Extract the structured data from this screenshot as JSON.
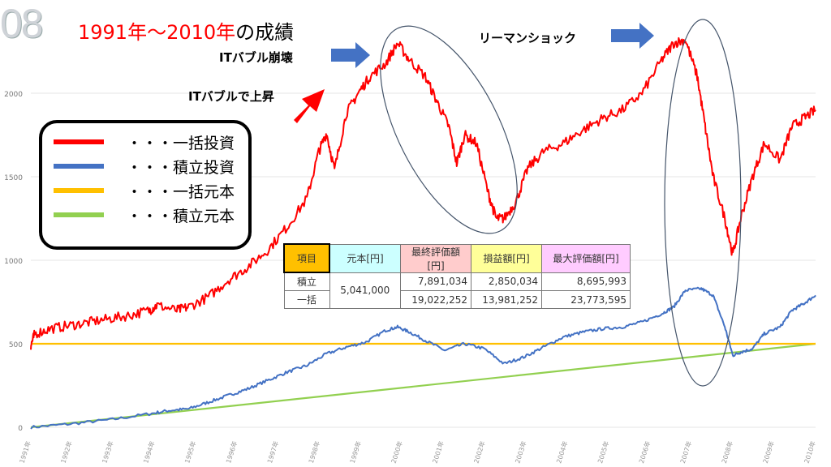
{
  "slide_number": "08",
  "title": {
    "red": "1991年～2010年",
    "black": "の成績"
  },
  "annotations": {
    "it_rise": "ITバブルで上昇",
    "it_crash": "ITバブル崩壊",
    "lehman": "リーマンショック"
  },
  "legend": [
    {
      "label": "・・・一括投資",
      "color": "#ff0000"
    },
    {
      "label": "・・・積立投資",
      "color": "#4472c4"
    },
    {
      "label": "・・・一括元本",
      "color": "#ffc000"
    },
    {
      "label": "・・・積立元本",
      "color": "#92d050"
    }
  ],
  "table": {
    "headers": [
      "項目",
      "元本[円]",
      "最終評価額[円]",
      "損益額[円]",
      "最大評価額[円]"
    ],
    "header_colors": [
      "#ffc000",
      "#ccffff",
      "#ffcccc",
      "#ffff99",
      "#ffccff"
    ],
    "principal": "5,041,000",
    "rows": [
      {
        "label": "積立",
        "final": "7,891,034",
        "profit": "2,850,034",
        "max": "8,695,993"
      },
      {
        "label": "一括",
        "final": "19,022,252",
        "profit": "13,981,252",
        "max": "23,773,595"
      }
    ]
  },
  "chart_data": {
    "type": "line",
    "ylim": [
      0,
      2500
    ],
    "yticks": [
      0,
      500,
      1000,
      1500,
      2000
    ],
    "xlim": [
      1991,
      2010
    ],
    "xticks": [
      "1991年",
      "1992年",
      "1993年",
      "1994年",
      "1995年",
      "1996年",
      "1997年",
      "1998年",
      "1999年",
      "2000年",
      "2001年",
      "2002年",
      "2003年",
      "2004年",
      "2005年",
      "2006年",
      "2007年",
      "2008年",
      "2009年",
      "2010年"
    ],
    "series": [
      {
        "name": "一括投資",
        "color": "#ff0000",
        "x": [
          1991,
          1991.1,
          1991.5,
          1992,
          1992.5,
          1993,
          1993.5,
          1994,
          1994.2,
          1994.7,
          1995,
          1995.5,
          1996,
          1996.5,
          1997,
          1997.5,
          1998,
          1998.3,
          1998.5,
          1998.7,
          1999,
          1999.3,
          1999.6,
          2000,
          2000.3,
          2000.6,
          2001,
          2001.3,
          2001.6,
          2001.8,
          2002,
          2002.3,
          2002.6,
          2002.8,
          2003,
          2003.3,
          2003.6,
          2004,
          2004.5,
          2005,
          2005.5,
          2006,
          2006.5,
          2007,
          2007.3,
          2007.6,
          2007.9,
          2008.1,
          2008.3,
          2008.6,
          2008.8,
          2009,
          2009.3,
          2009.6,
          2010,
          2010.3,
          2010.6,
          2010.9
        ],
        "values": [
          490,
          560,
          590,
          610,
          630,
          650,
          670,
          700,
          730,
          700,
          720,
          780,
          880,
          960,
          1060,
          1200,
          1370,
          1650,
          1760,
          1540,
          1880,
          2000,
          2100,
          2180,
          2300,
          2200,
          2100,
          1950,
          1800,
          1580,
          1750,
          1700,
          1400,
          1250,
          1250,
          1350,
          1550,
          1650,
          1700,
          1780,
          1850,
          1900,
          2000,
          2200,
          2300,
          2320,
          2100,
          1800,
          1500,
          1250,
          1030,
          1250,
          1500,
          1700,
          1600,
          1800,
          1850,
          1900
        ]
      },
      {
        "name": "積立投資",
        "color": "#4472c4",
        "x": [
          1991,
          1992,
          1993,
          1994,
          1994.5,
          1995,
          1995.5,
          1996,
          1996.5,
          1997,
          1997.5,
          1998,
          1998.5,
          1999,
          1999.5,
          2000,
          2000.3,
          2000.6,
          2001,
          2001.5,
          2002,
          2002.5,
          2003,
          2003.5,
          2004,
          2004.5,
          2005,
          2005.5,
          2006,
          2006.5,
          2007,
          2007.3,
          2007.6,
          2008,
          2008.3,
          2008.6,
          2008.8,
          2009,
          2009.3,
          2009.6,
          2010,
          2010.3,
          2010.6,
          2010.9
        ],
        "values": [
          0,
          20,
          45,
          80,
          100,
          110,
          150,
          190,
          230,
          280,
          330,
          370,
          440,
          480,
          510,
          580,
          600,
          570,
          520,
          460,
          500,
          470,
          380,
          420,
          480,
          540,
          570,
          590,
          600,
          630,
          680,
          720,
          820,
          830,
          790,
          600,
          430,
          450,
          470,
          560,
          600,
          700,
          740,
          790
        ]
      },
      {
        "name": "一括元本",
        "color": "#ffc000",
        "x": [
          1991,
          2010.9
        ],
        "values": [
          500,
          500
        ]
      },
      {
        "name": "積立元本",
        "color": "#92d050",
        "x": [
          1991,
          2010.9
        ],
        "values": [
          0,
          500
        ]
      }
    ]
  }
}
